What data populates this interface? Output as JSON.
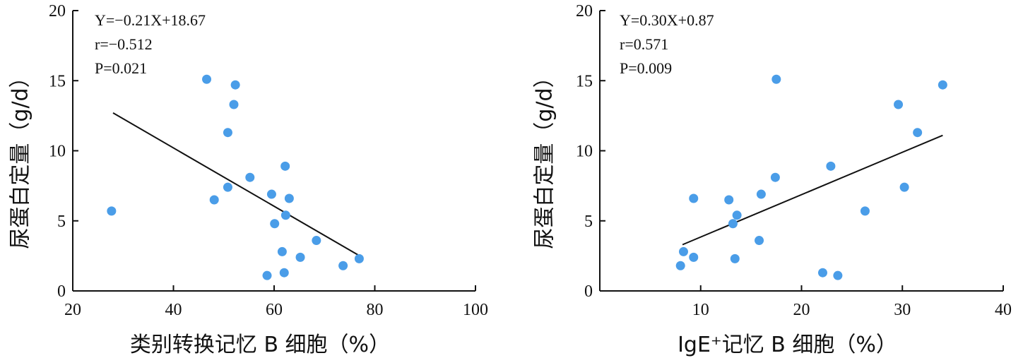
{
  "chart_data": [
    {
      "type": "scatter",
      "xlabel": "类别转换记忆 B 细胞（%）",
      "ylabel": "尿蛋白定量（g/d）",
      "xlim": [
        20,
        100
      ],
      "ylim": [
        0,
        20
      ],
      "xticks": [
        20,
        40,
        60,
        80,
        100
      ],
      "yticks": [
        0,
        5,
        10,
        15,
        20
      ],
      "annotations": [
        "Y=−0.21X+18.67",
        "r=−0.512",
        "P=0.021"
      ],
      "fit_line": {
        "x": [
          28,
          77
        ],
        "y": [
          12.7,
          2.5
        ]
      },
      "point_color": "#4a9de8",
      "points": [
        {
          "x": 27.7,
          "y": 5.7
        },
        {
          "x": 46.6,
          "y": 15.1
        },
        {
          "x": 52.3,
          "y": 14.7
        },
        {
          "x": 52.0,
          "y": 13.3
        },
        {
          "x": 50.8,
          "y": 11.3
        },
        {
          "x": 62.2,
          "y": 8.9
        },
        {
          "x": 55.2,
          "y": 8.1
        },
        {
          "x": 50.8,
          "y": 7.4
        },
        {
          "x": 59.5,
          "y": 6.9
        },
        {
          "x": 63.0,
          "y": 6.6
        },
        {
          "x": 48.1,
          "y": 6.5
        },
        {
          "x": 62.3,
          "y": 5.4
        },
        {
          "x": 60.1,
          "y": 4.8
        },
        {
          "x": 68.4,
          "y": 3.6
        },
        {
          "x": 61.6,
          "y": 2.8
        },
        {
          "x": 65.2,
          "y": 2.4
        },
        {
          "x": 76.9,
          "y": 2.3
        },
        {
          "x": 73.7,
          "y": 1.8
        },
        {
          "x": 62.0,
          "y": 1.3
        },
        {
          "x": 58.6,
          "y": 1.1
        }
      ]
    },
    {
      "type": "scatter",
      "xlabel": "IgE⁺记忆 B 细胞（%）",
      "ylabel": "尿蛋白定量（g/d）",
      "xlim": [
        0,
        40
      ],
      "ylim": [
        0,
        20
      ],
      "xticks": [
        10,
        20,
        30,
        40
      ],
      "yticks": [
        0,
        5,
        10,
        15,
        20
      ],
      "annotations": [
        "Y=0.30X+0.87",
        "r=0.571",
        "P=0.009"
      ],
      "fit_line": {
        "x": [
          8.2,
          34
        ],
        "y": [
          3.3,
          11.1
        ]
      },
      "point_color": "#4a9de8",
      "points": [
        {
          "x": 17.5,
          "y": 15.1
        },
        {
          "x": 34.0,
          "y": 14.7
        },
        {
          "x": 29.6,
          "y": 13.3
        },
        {
          "x": 31.5,
          "y": 11.3
        },
        {
          "x": 22.9,
          "y": 8.9
        },
        {
          "x": 17.4,
          "y": 8.1
        },
        {
          "x": 30.2,
          "y": 7.4
        },
        {
          "x": 16.0,
          "y": 6.9
        },
        {
          "x": 9.3,
          "y": 6.6
        },
        {
          "x": 12.8,
          "y": 6.5
        },
        {
          "x": 26.3,
          "y": 5.7
        },
        {
          "x": 13.6,
          "y": 5.4
        },
        {
          "x": 13.2,
          "y": 4.8
        },
        {
          "x": 15.8,
          "y": 3.6
        },
        {
          "x": 8.3,
          "y": 2.8
        },
        {
          "x": 9.3,
          "y": 2.4
        },
        {
          "x": 13.4,
          "y": 2.3
        },
        {
          "x": 8.0,
          "y": 1.8
        },
        {
          "x": 22.1,
          "y": 1.3
        },
        {
          "x": 23.6,
          "y": 1.1
        }
      ]
    }
  ]
}
